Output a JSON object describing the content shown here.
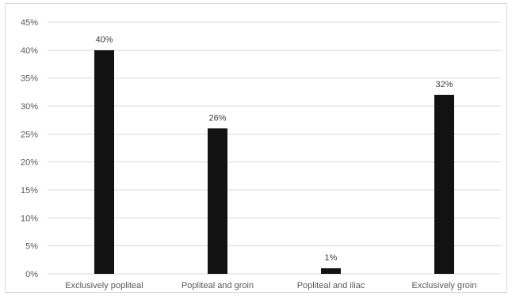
{
  "chart_data": {
    "type": "bar",
    "categories": [
      "Exclusively popliteal",
      "Popliteal and groin",
      "Popliteal and iliac",
      "Exclusively groin"
    ],
    "values": [
      40,
      26,
      1,
      32
    ],
    "data_labels": [
      "40%",
      "26%",
      "1%",
      "32%"
    ],
    "title": "",
    "xlabel": "",
    "ylabel": "",
    "ylim": [
      0,
      45
    ],
    "yticks": [
      0,
      5,
      10,
      15,
      20,
      25,
      30,
      35,
      40,
      45
    ],
    "ytick_labels": [
      "0%",
      "5%",
      "10%",
      "15%",
      "20%",
      "25%",
      "30%",
      "35%",
      "40%",
      "45%"
    ],
    "grid": true,
    "bar_color": "#121212",
    "grid_color": "#d9d9d9",
    "legend": "none"
  }
}
